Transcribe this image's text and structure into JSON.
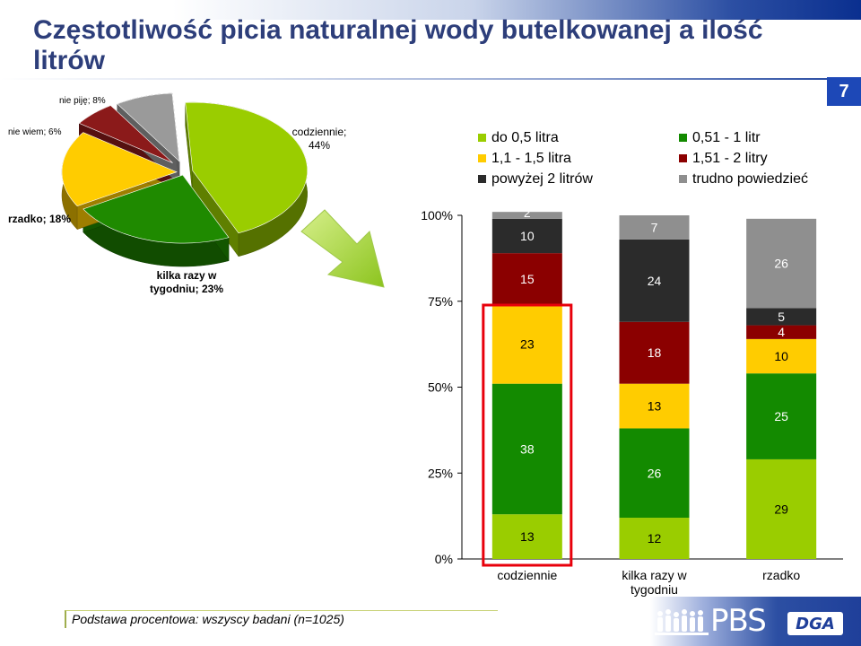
{
  "title": "Częstotliwość picia naturalnej wody butelkowanej a ilość litrów",
  "page_number": "7",
  "footnote": "Podstawa procentowa: wszyscy badani (n=1025)",
  "logos": {
    "pbs": "PBS",
    "dga": "DGA"
  },
  "colors": {
    "title": "#2d3e7a",
    "accent_blue": "#1d48b7",
    "arrow": "#9acd32",
    "highlight": "#e8000b"
  },
  "chart_data": [
    {
      "type": "pie",
      "slices": [
        {
          "label": "codziennie; 44%",
          "value": 44,
          "color": "#9acd00"
        },
        {
          "label": "kilka razy w tygodniu; 23%",
          "value": 23,
          "color": "#1f8a00"
        },
        {
          "label": "rzadko; 18%",
          "value": 18,
          "color": "#ffcc00"
        },
        {
          "label": "nie wiem; 6%",
          "value": 6,
          "color": "#8b1a1a"
        },
        {
          "label": "nie piję; 8%",
          "value": 8,
          "color": "#9a9a9a"
        }
      ]
    },
    {
      "type": "bar",
      "stacked": true,
      "categories": [
        "codziennie",
        "kilka razy w tygodniu",
        "rzadko"
      ],
      "yticks": [
        "0%",
        "25%",
        "50%",
        "75%",
        "100%"
      ],
      "ylim": [
        0,
        100
      ],
      "legend_position": "top",
      "series": [
        {
          "name": "do 0,5 litra",
          "color": "#9acd00",
          "values": [
            13,
            12,
            29
          ]
        },
        {
          "name": "0,51 - 1 litr",
          "color": "#138a00",
          "values": [
            38,
            26,
            25
          ]
        },
        {
          "name": "1,1 - 1,5 litra",
          "color": "#ffcc00",
          "values": [
            23,
            13,
            10
          ]
        },
        {
          "name": "1,51 - 2 litry",
          "color": "#8b0000",
          "values": [
            15,
            18,
            4
          ]
        },
        {
          "name": "powyżej 2 litrów",
          "color": "#2b2b2b",
          "values": [
            10,
            24,
            5
          ]
        },
        {
          "name": "trudno powiedzieć",
          "color": "#8f8f8f",
          "values": [
            2,
            7,
            26
          ]
        }
      ],
      "highlight_category": "codziennie"
    }
  ]
}
